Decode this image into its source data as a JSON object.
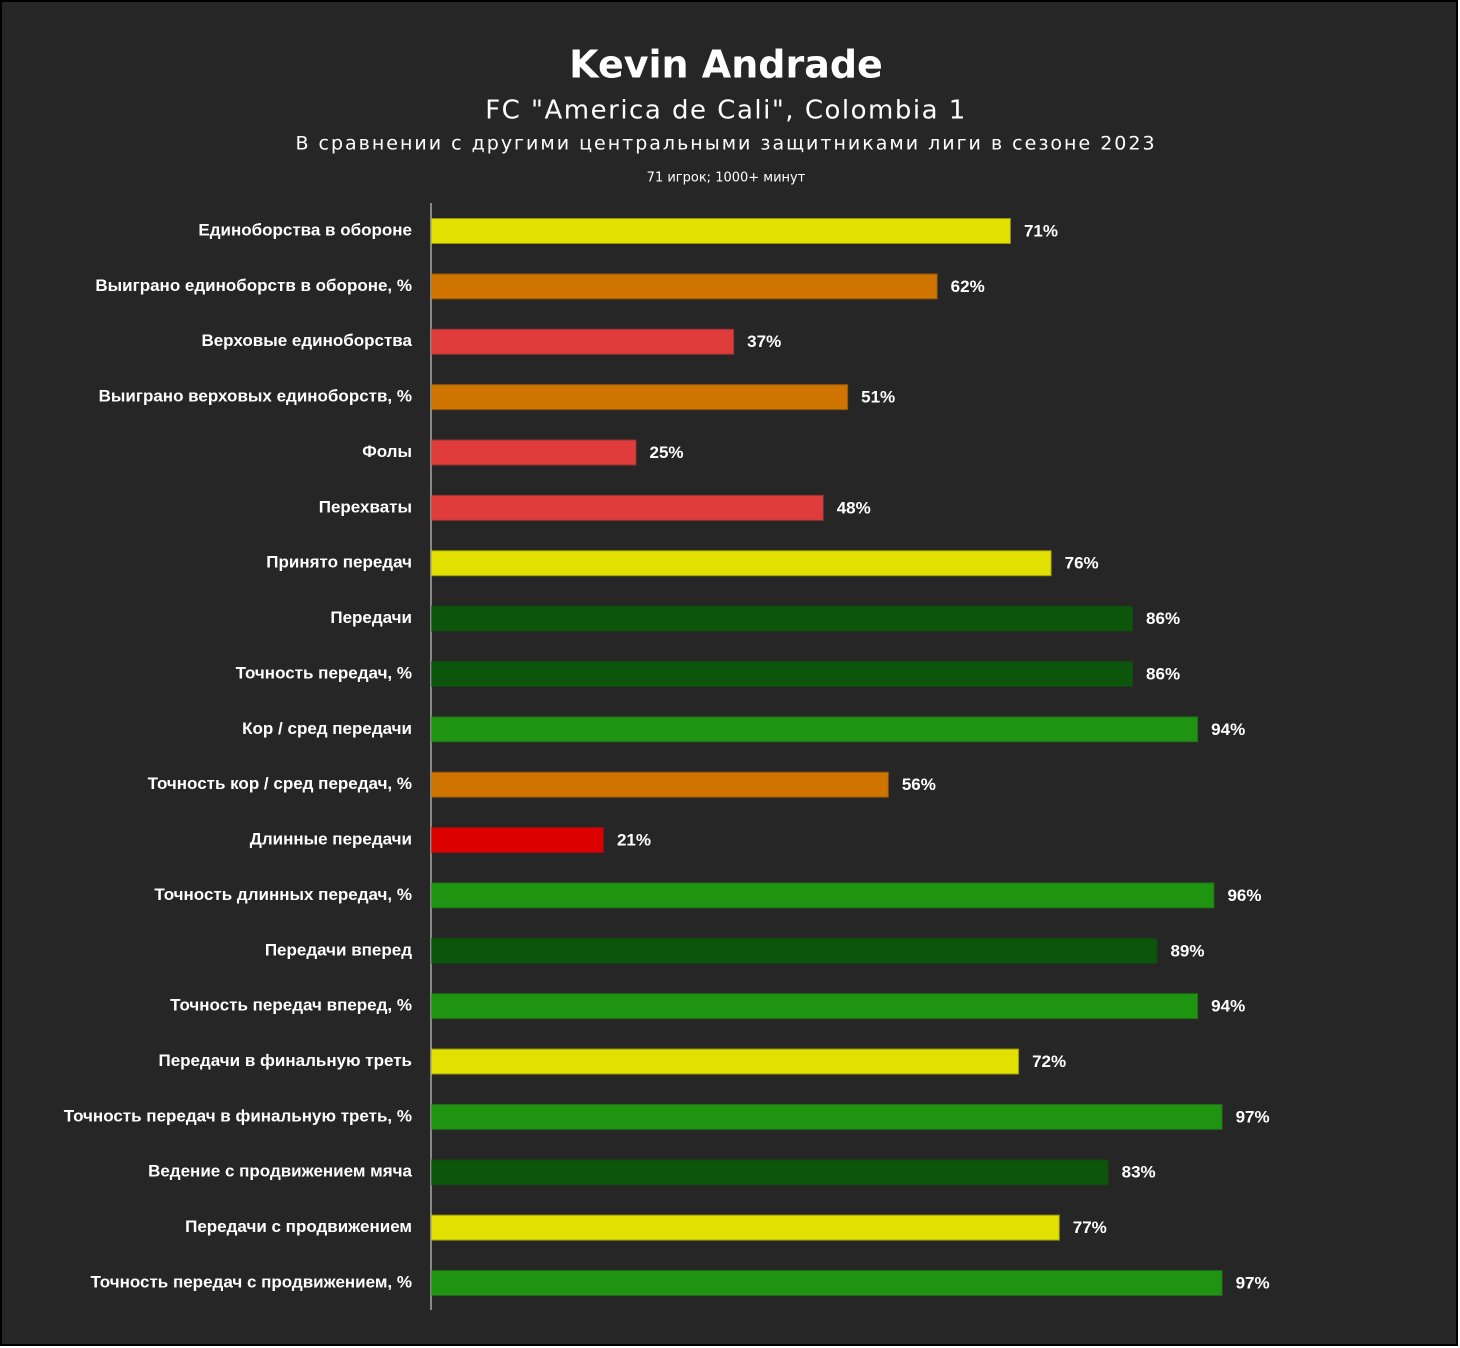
{
  "chart_data": {
    "type": "hbar",
    "title": "Kevin Andrade",
    "subtitle": "FC \"America de Cali\", Colombia 1",
    "description": "В сравнении с другими центральными защитниками лиги в сезоне 2023",
    "note": "71 игрок; 1000+ минут",
    "categories": [
      "Единоборства в обороне",
      "Выиграно единоборств в обороне, %",
      "Верховые единоборства",
      "Выиграно верховых единоборств, %",
      "Фолы",
      "Перехваты",
      "Принято передач",
      "Передачи",
      "Точность передач, %",
      "Кор / сред передачи",
      "Точность кор / сред передач, %",
      "Длинные передачи",
      "Точность длинных передач, %",
      "Передачи вперед",
      "Точность передач вперед, %",
      "Передачи в финальную треть",
      "Точность передач в финальную треть, %",
      "Ведение с продвижением мяча",
      "Передачи с продвижением",
      "Точность передач с продвижением, %"
    ],
    "values": [
      71,
      62,
      37,
      51,
      25,
      48,
      76,
      86,
      86,
      94,
      56,
      21,
      96,
      89,
      94,
      72,
      97,
      83,
      77,
      97
    ],
    "value_labels": [
      "71%",
      "62%",
      "37%",
      "51%",
      "25%",
      "48%",
      "76%",
      "86%",
      "86%",
      "94%",
      "56%",
      "21%",
      "96%",
      "89%",
      "94%",
      "72%",
      "97%",
      "83%",
      "77%",
      "97%"
    ],
    "colors": [
      "#e2e000",
      "#d07400",
      "#e03c3c",
      "#d07400",
      "#e03c3c",
      "#e03c3c",
      "#e2e000",
      "#0b560b",
      "#0b560b",
      "#1f9410",
      "#d07400",
      "#dd0000",
      "#1f9410",
      "#0b560b",
      "#1f9410",
      "#e2e000",
      "#1f9410",
      "#0b560b",
      "#e2e000",
      "#1f9410"
    ]
  }
}
